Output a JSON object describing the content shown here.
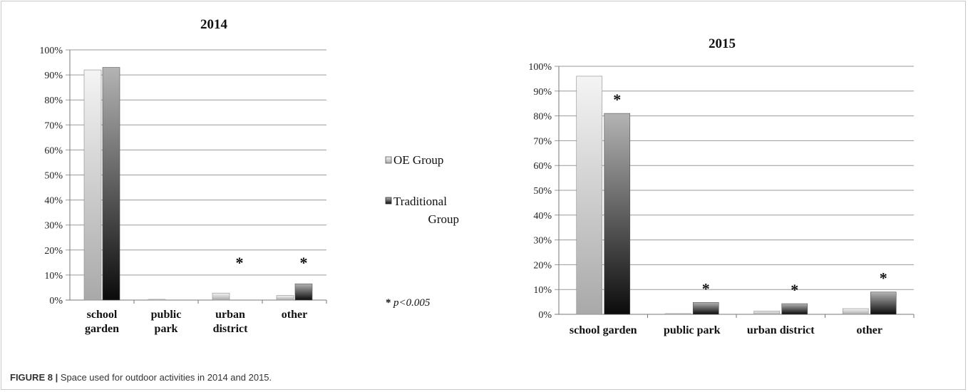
{
  "caption": {
    "label": "FIGURE 8 |",
    "text": "Space used for outdoor activities in 2014 and 2015."
  },
  "legend": {
    "oe": "OE Group",
    "trad_line1": "Traditional",
    "trad_line2": "Group",
    "sig_star": "*",
    "sig_text": "p<0.005"
  },
  "chart_data": [
    {
      "type": "bar",
      "title": "2014",
      "categories": [
        [
          "school",
          "garden"
        ],
        [
          "public",
          "park"
        ],
        [
          "urban",
          "district"
        ],
        [
          "other"
        ]
      ],
      "series": [
        {
          "name": "OE Group",
          "values": [
            92,
            0.3,
            2.8,
            1.8
          ]
        },
        {
          "name": "Traditional Group",
          "values": [
            93,
            0,
            0,
            6.5
          ]
        }
      ],
      "significant": [
        "",
        "",
        "*",
        "*"
      ],
      "ylim": [
        0,
        100
      ],
      "yticks": [
        "0%",
        "10%",
        "20%",
        "30%",
        "40%",
        "50%",
        "60%",
        "70%",
        "80%",
        "90%",
        "100%"
      ],
      "grid": true
    },
    {
      "type": "bar",
      "title": "2015",
      "categories": [
        [
          "school garden"
        ],
        [
          "public park"
        ],
        [
          "urban district"
        ],
        [
          "other"
        ]
      ],
      "series": [
        {
          "name": "OE Group",
          "values": [
            96,
            0.3,
            1.3,
            2.3
          ]
        },
        {
          "name": "Traditional Group",
          "values": [
            81,
            4.8,
            4.3,
            9
          ]
        }
      ],
      "significant": [
        "*",
        "*",
        "*",
        "*"
      ],
      "ylim": [
        0,
        100
      ],
      "yticks": [
        "0%",
        "10%",
        "20%",
        "30%",
        "40%",
        "50%",
        "60%",
        "70%",
        "80%",
        "90%",
        "100%"
      ],
      "grid": true
    }
  ]
}
